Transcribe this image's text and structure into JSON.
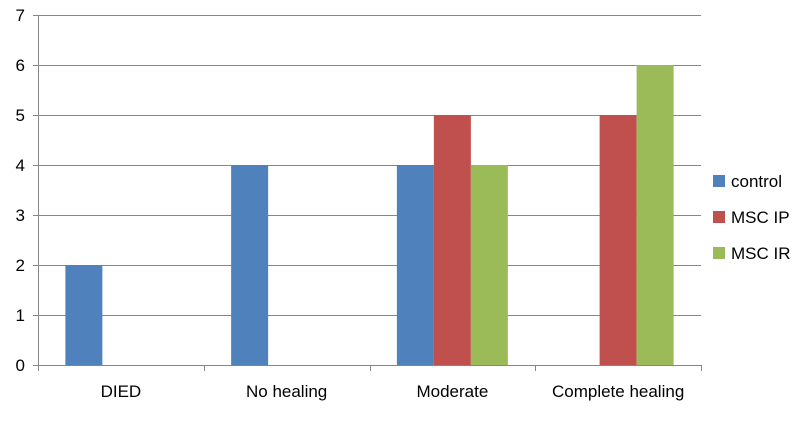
{
  "chart_data": {
    "type": "bar",
    "title": "",
    "xlabel": "",
    "ylabel": "",
    "categories": [
      "DIED",
      "No healing",
      "Moderate",
      "Complete healing"
    ],
    "series": [
      {
        "name": "control",
        "color": "#4f81bd",
        "values": [
          2,
          4,
          4,
          0
        ]
      },
      {
        "name": "MSC IP",
        "color": "#c0504d",
        "values": [
          0,
          0,
          5,
          5
        ]
      },
      {
        "name": "MSC IR",
        "color": "#9bbb59",
        "values": [
          0,
          0,
          4,
          6
        ]
      }
    ],
    "ylim": [
      0,
      7
    ],
    "yticks": [
      0,
      1,
      2,
      3,
      4,
      5,
      6,
      7
    ],
    "grid": true,
    "legend_position": "right"
  }
}
